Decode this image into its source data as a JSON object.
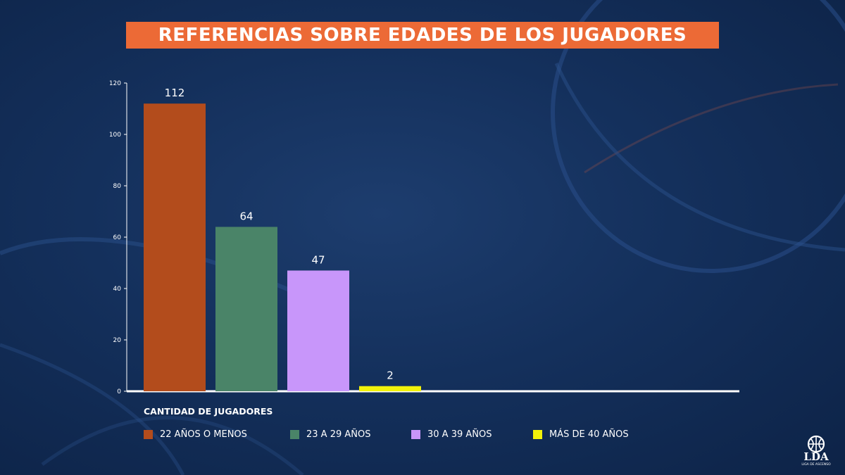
{
  "title": "REFERENCIAS SOBRE EDADES DE LOS JUGADORES",
  "colors": {
    "background": "#14305c",
    "title_bar": "#ec6a36",
    "axis": "#ffffff"
  },
  "chart_data": {
    "type": "bar",
    "title": "REFERENCIAS SOBRE EDADES DE LOS JUGADORES",
    "xlabel": "CANTIDAD DE JUGADORES",
    "ylabel": "",
    "ylim": [
      0,
      120
    ],
    "yticks": [
      0,
      20,
      40,
      60,
      80,
      100,
      120
    ],
    "grid": false,
    "legend_position": "bottom",
    "categories": [
      "22 AÑOS O MENOS",
      "23 A 29 AÑOS",
      "30 A 39 AÑOS",
      "MÁS DE 40 AÑOS"
    ],
    "values": [
      112,
      64,
      47,
      2
    ],
    "value_labels": [
      "112",
      "64",
      "47",
      "2"
    ],
    "colors": [
      "#b34c1c",
      "#4a8468",
      "#c896fa",
      "#f2f20a"
    ]
  },
  "logo": {
    "text": "LDA",
    "subtitle": "LIGA DE ASCENSO"
  }
}
